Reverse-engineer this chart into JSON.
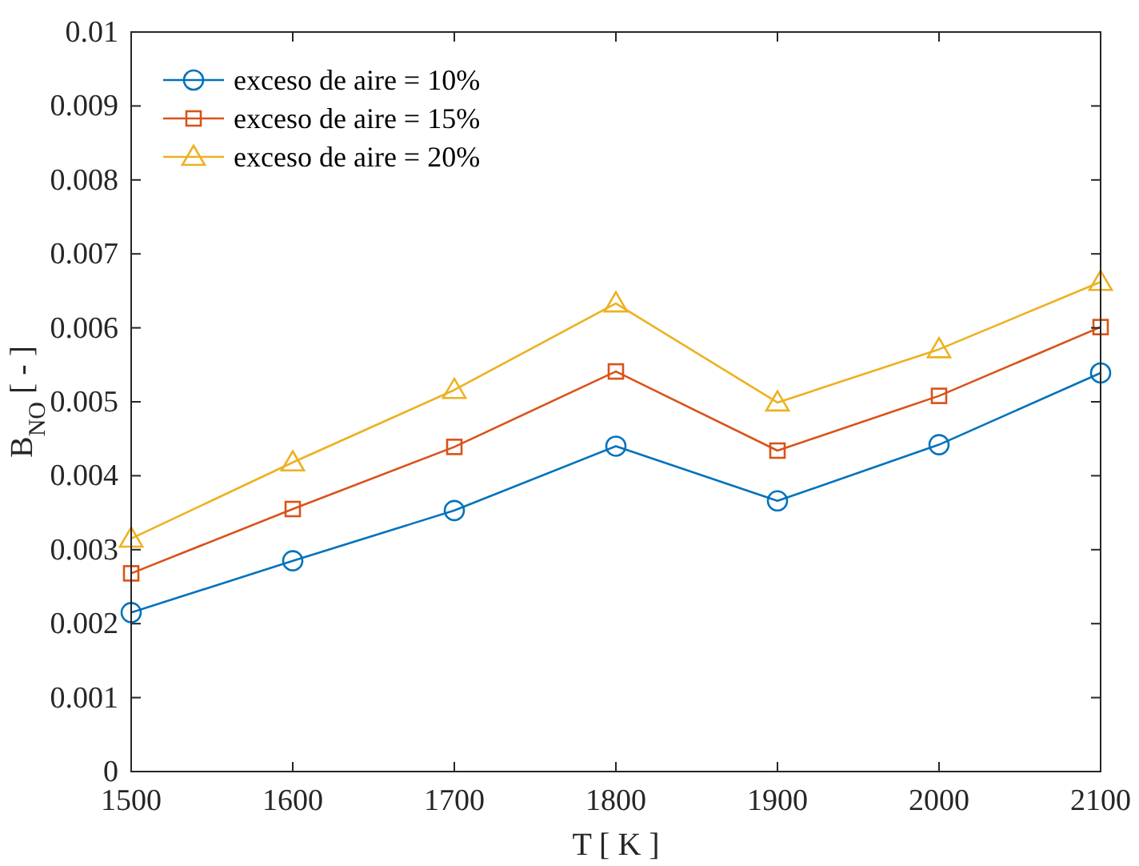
{
  "chart_data": {
    "type": "line",
    "xlabel": "T [ K ]",
    "ylabel": "B$_{NO}$ [ - ]",
    "x": [
      1500,
      1600,
      1700,
      1800,
      1900,
      2000,
      2100
    ],
    "xlim": [
      1500,
      2100
    ],
    "xticks": [
      1500,
      1600,
      1700,
      1800,
      1900,
      2000,
      2100
    ],
    "ylim": [
      0,
      0.01
    ],
    "yticks": [
      0,
      0.001,
      0.002,
      0.003,
      0.004,
      0.005,
      0.006,
      0.007,
      0.008,
      0.009,
      0.01
    ],
    "legend": "top left",
    "grid": false,
    "series": [
      {
        "name": "exceso de aire = 10%",
        "color": "#0072bd",
        "marker": "circle",
        "values": [
          0.00215,
          0.00285,
          0.00353,
          0.0044,
          0.00366,
          0.00442,
          0.00539
        ]
      },
      {
        "name": "exceso de aire = 15%",
        "color": "#d95319",
        "marker": "square",
        "values": [
          0.00268,
          0.00355,
          0.00439,
          0.00541,
          0.00434,
          0.00508,
          0.00601
        ]
      },
      {
        "name": "exceso de aire = 20%",
        "color": "#edb120",
        "marker": "triangle",
        "values": [
          0.00315,
          0.00418,
          0.00516,
          0.00633,
          0.00499,
          0.00571,
          0.00662
        ]
      }
    ]
  }
}
